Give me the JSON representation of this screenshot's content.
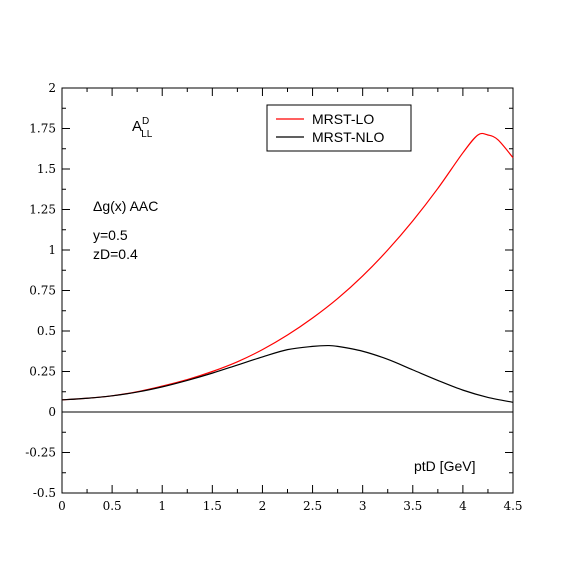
{
  "chart_data": {
    "type": "line",
    "xlim": [
      0,
      4.5
    ],
    "ylim": [
      -0.5,
      2
    ],
    "xticks": [
      {
        "v": 0,
        "label": "0"
      },
      {
        "v": 0.5,
        "label": "0.5"
      },
      {
        "v": 1,
        "label": "1"
      },
      {
        "v": 1.5,
        "label": "1.5"
      },
      {
        "v": 2,
        "label": "2"
      },
      {
        "v": 2.5,
        "label": "2.5"
      },
      {
        "v": 3,
        "label": "3"
      },
      {
        "v": 3.5,
        "label": "3.5"
      },
      {
        "v": 4,
        "label": "4"
      },
      {
        "v": 4.5,
        "label": "4.5"
      }
    ],
    "yticks": [
      {
        "v": -0.5,
        "label": "-0.5"
      },
      {
        "v": -0.25,
        "label": "-0.25"
      },
      {
        "v": 0,
        "label": "0"
      },
      {
        "v": 0.25,
        "label": "0.25"
      },
      {
        "v": 0.5,
        "label": "0.5"
      },
      {
        "v": 0.75,
        "label": "0.75"
      },
      {
        "v": 1,
        "label": "1"
      },
      {
        "v": 1.25,
        "label": "1.25"
      },
      {
        "v": 1.5,
        "label": "1.5"
      },
      {
        "v": 1.75,
        "label": "1.75"
      },
      {
        "v": 2,
        "label": "2"
      }
    ],
    "xlabel": "ptD [GeV]",
    "ylabel_main": "A",
    "ylabel_sup": "D",
    "ylabel_sub": "LL",
    "annotations": [
      "Δg(x)  AAC",
      "y=0.5",
      "zD=0.4"
    ],
    "legend_position": "top-right",
    "zero_line": true,
    "series": [
      {
        "name": "MRST-LO",
        "color": "#ff0000",
        "x": [
          0,
          0.25,
          0.5,
          0.75,
          1.0,
          1.25,
          1.5,
          1.75,
          2.0,
          2.25,
          2.5,
          2.75,
          3.0,
          3.25,
          3.5,
          3.75,
          4.0,
          4.15,
          4.25,
          4.35,
          4.5
        ],
        "y": [
          0.075,
          0.085,
          0.1,
          0.125,
          0.16,
          0.2,
          0.25,
          0.31,
          0.385,
          0.475,
          0.58,
          0.7,
          0.84,
          1.0,
          1.18,
          1.38,
          1.6,
          1.71,
          1.71,
          1.68,
          1.57
        ]
      },
      {
        "name": "MRST-NLO",
        "color": "#000000",
        "x": [
          0,
          0.25,
          0.5,
          0.75,
          1.0,
          1.25,
          1.5,
          1.75,
          2.0,
          2.25,
          2.5,
          2.65,
          2.75,
          3.0,
          3.25,
          3.5,
          3.75,
          4.0,
          4.25,
          4.5
        ],
        "y": [
          0.075,
          0.085,
          0.1,
          0.123,
          0.155,
          0.195,
          0.24,
          0.29,
          0.34,
          0.385,
          0.405,
          0.41,
          0.405,
          0.375,
          0.325,
          0.26,
          0.195,
          0.135,
          0.09,
          0.06
        ]
      }
    ]
  }
}
